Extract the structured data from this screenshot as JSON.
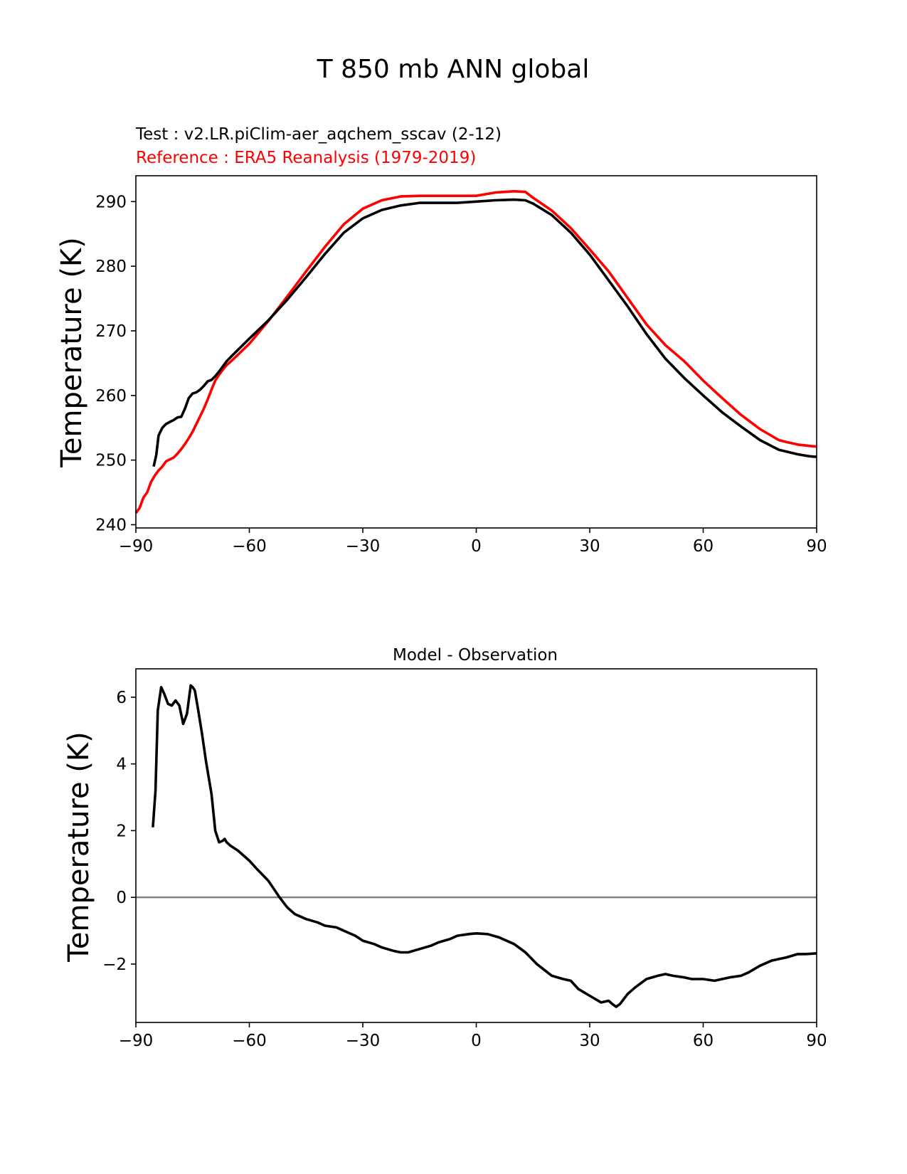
{
  "figure": {
    "title": "T 850 mb ANN global"
  },
  "colors": {
    "test": "#000000",
    "reference": "#ff0000",
    "zero_line": "#808080"
  },
  "chart_data": [
    {
      "type": "line",
      "title_test": "Test : v2.LR.piClim-aer_aqchem_sscav (2-12)",
      "title_reference": "Reference : ERA5 Reanalysis (1979-2019)",
      "xlabel": "",
      "ylabel": "Temperature (K)",
      "xlim": [
        -90,
        90
      ],
      "ylim": [
        239.5,
        294
      ],
      "xticks": [
        -90,
        -60,
        -30,
        0,
        30,
        60,
        90
      ],
      "xtick_labels": [
        "−90",
        "−60",
        "−30",
        "0",
        "30",
        "60",
        "90"
      ],
      "yticks": [
        240,
        250,
        260,
        270,
        280,
        290
      ],
      "ytick_labels": [
        "240",
        "250",
        "260",
        "270",
        "280",
        "290"
      ],
      "series": [
        {
          "name": "Reference : ERA5 Reanalysis (1979-2019)",
          "color": "reference",
          "x": [
            -90,
            -89,
            -88,
            -87,
            -86,
            -85,
            -84,
            -83,
            -82,
            -81,
            -80,
            -79,
            -78,
            -77,
            -76,
            -75,
            -74,
            -73,
            -72,
            -71,
            -70,
            -69,
            -68,
            -67,
            -66,
            -65,
            -63,
            -60,
            -55,
            -50,
            -45,
            -40,
            -35,
            -30,
            -25,
            -20,
            -15,
            -10,
            -5,
            0,
            5,
            10,
            13,
            15,
            20,
            25,
            30,
            35,
            40,
            45,
            50,
            55,
            60,
            65,
            70,
            75,
            80,
            82,
            85,
            88,
            90
          ],
          "y": [
            241.8,
            242.6,
            244.2,
            245.0,
            246.6,
            247.6,
            248.4,
            249.0,
            249.8,
            250.1,
            250.4,
            251.0,
            251.7,
            252.5,
            253.4,
            254.4,
            255.6,
            256.8,
            258.0,
            259.4,
            260.9,
            262.3,
            263.2,
            264.0,
            264.7,
            265.2,
            266.3,
            268.0,
            271.5,
            275.3,
            279.2,
            283.0,
            286.5,
            288.9,
            290.2,
            290.8,
            290.9,
            290.9,
            290.9,
            290.9,
            291.4,
            291.6,
            291.5,
            290.6,
            288.6,
            285.9,
            282.6,
            279.2,
            275.1,
            271.0,
            267.8,
            265.3,
            262.3,
            259.6,
            257.0,
            254.8,
            253.1,
            252.8,
            252.4,
            252.2,
            252.1
          ]
        },
        {
          "name": "Test : v2.LR.piClim-aer_aqchem_sscav (2-12)",
          "color": "test",
          "x": [
            -85.3,
            -84.6,
            -84,
            -83,
            -82,
            -81,
            -80,
            -79,
            -78,
            -77,
            -76,
            -75,
            -74,
            -73,
            -72,
            -71,
            -70,
            -69,
            -68,
            -67,
            -66,
            -65,
            -60,
            -55,
            -50,
            -45,
            -40,
            -35,
            -30,
            -25,
            -20,
            -15,
            -10,
            -5,
            0,
            5,
            10,
            13,
            15,
            20,
            25,
            30,
            35,
            40,
            45,
            50,
            55,
            60,
            65,
            70,
            75,
            80,
            85,
            88,
            90
          ],
          "y": [
            249.0,
            250.8,
            253.8,
            255.0,
            255.6,
            255.9,
            256.2,
            256.6,
            256.7,
            258.0,
            259.6,
            260.3,
            260.5,
            260.9,
            261.5,
            262.2,
            262.4,
            263.0,
            263.7,
            264.5,
            265.3,
            265.9,
            268.8,
            271.6,
            274.8,
            278.3,
            281.9,
            285.2,
            287.4,
            288.7,
            289.4,
            289.8,
            289.8,
            289.8,
            290.0,
            290.2,
            290.3,
            290.2,
            289.7,
            287.9,
            285.2,
            281.8,
            277.8,
            273.8,
            269.5,
            265.7,
            262.7,
            260.0,
            257.4,
            255.2,
            253.1,
            251.6,
            250.9,
            250.6,
            250.5
          ]
        }
      ]
    },
    {
      "type": "line",
      "title": "Model - Observation",
      "xlabel": "",
      "ylabel": "Temperature (K)",
      "xlim": [
        -90,
        90
      ],
      "ylim": [
        -3.75,
        6.85
      ],
      "xticks": [
        -90,
        -60,
        -30,
        0,
        30,
        60,
        90
      ],
      "xtick_labels": [
        "−90",
        "−60",
        "−30",
        "0",
        "30",
        "60",
        "90"
      ],
      "yticks": [
        -2,
        0,
        2,
        4,
        6
      ],
      "ytick_labels": [
        "−2",
        "0",
        "2",
        "4",
        "6"
      ],
      "hline": 0,
      "series": [
        {
          "name": "Model - Observation",
          "color": "test",
          "x": [
            -85.5,
            -84.8,
            -84.2,
            -83.3,
            -82.5,
            -81.5,
            -80.5,
            -79.5,
            -78.5,
            -77.5,
            -76.5,
            -75.5,
            -75,
            -74.4,
            -73.5,
            -72.5,
            -71.5,
            -70,
            -69,
            -68,
            -67,
            -66.5,
            -66,
            -65,
            -63,
            -60,
            -58,
            -55,
            -52,
            -50,
            -48,
            -45,
            -42,
            -40,
            -37,
            -35,
            -32,
            -30,
            -27,
            -25,
            -22,
            -20,
            -18,
            -15,
            -12,
            -10,
            -7,
            -5,
            -2,
            0,
            3,
            6,
            10,
            13,
            16,
            20,
            23,
            25,
            27,
            30,
            33,
            35,
            36,
            37,
            38,
            40,
            42,
            45,
            48,
            50,
            52,
            55,
            57,
            60,
            63,
            65,
            67,
            70,
            72,
            75,
            78,
            80,
            82,
            85,
            87,
            90
          ],
          "y": [
            2.1,
            3.2,
            5.6,
            6.3,
            6.1,
            5.8,
            5.75,
            5.9,
            5.75,
            5.2,
            5.5,
            6.35,
            6.3,
            6.2,
            5.6,
            4.9,
            4.1,
            3.1,
            2.0,
            1.65,
            1.7,
            1.75,
            1.65,
            1.55,
            1.4,
            1.1,
            0.85,
            0.5,
            0.0,
            -0.3,
            -0.5,
            -0.65,
            -0.75,
            -0.85,
            -0.9,
            -1.0,
            -1.15,
            -1.3,
            -1.4,
            -1.5,
            -1.6,
            -1.65,
            -1.65,
            -1.55,
            -1.45,
            -1.35,
            -1.25,
            -1.15,
            -1.1,
            -1.08,
            -1.1,
            -1.2,
            -1.4,
            -1.65,
            -2.0,
            -2.35,
            -2.45,
            -2.5,
            -2.75,
            -2.95,
            -3.15,
            -3.1,
            -3.2,
            -3.28,
            -3.2,
            -2.9,
            -2.7,
            -2.45,
            -2.35,
            -2.3,
            -2.35,
            -2.4,
            -2.45,
            -2.45,
            -2.5,
            -2.45,
            -2.4,
            -2.35,
            -2.25,
            -2.05,
            -1.9,
            -1.85,
            -1.8,
            -1.7,
            -1.7,
            -1.68
          ]
        }
      ]
    }
  ]
}
